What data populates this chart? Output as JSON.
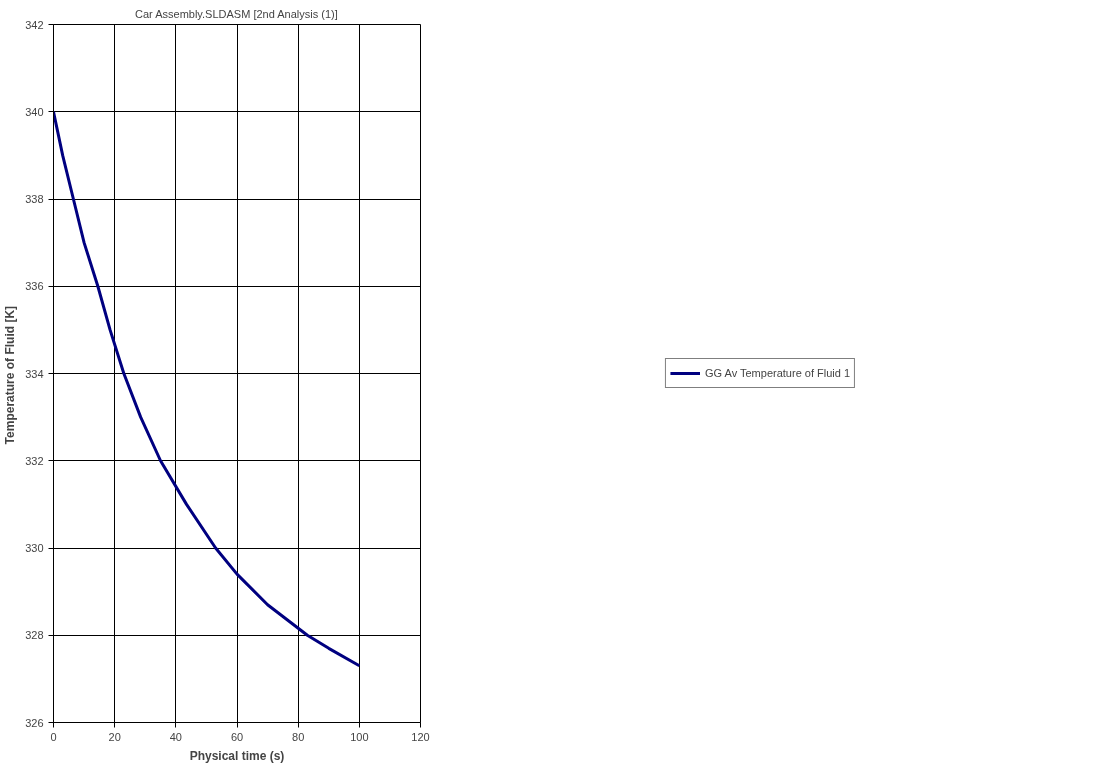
{
  "chart_data": {
    "type": "line",
    "title": "Car Assembly.SLDASM [2nd Analysis (1)]",
    "xlabel": "Physical time (s)",
    "ylabel": "Temperature of Fluid  [K]",
    "series": [
      {
        "name": "GG Av Temperature of Fluid 1",
        "color": "#000080",
        "x": [
          0,
          3,
          6.5,
          10,
          14.5,
          18.5,
          23,
          28.5,
          35,
          43.5,
          53,
          60,
          70,
          83,
          90,
          100
        ],
        "values": [
          340,
          339,
          338,
          337,
          336,
          335,
          334,
          333,
          332,
          331,
          330,
          329.4,
          328.7,
          328,
          327.7,
          327.3
        ]
      }
    ],
    "xlim": [
      0,
      120
    ],
    "xticks": [
      0,
      20,
      40,
      60,
      80,
      100,
      120
    ],
    "ylim": [
      326,
      342
    ],
    "yticks": [
      326,
      328,
      330,
      332,
      334,
      336,
      338,
      340,
      342
    ],
    "grid": true,
    "legend": "right",
    "marker": "none",
    "line_style": "solid"
  }
}
